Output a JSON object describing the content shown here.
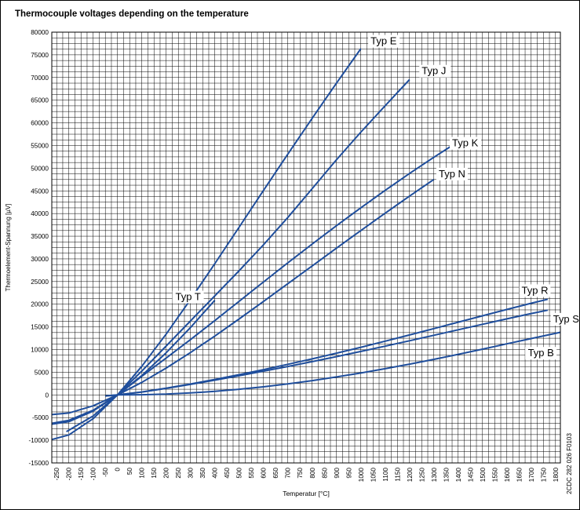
{
  "chart_data": {
    "type": "line",
    "title": "Thermocouple voltages depending on the temperature",
    "xlabel": "Temperatur [°C]",
    "ylabel": "Thermoelement-Spannung [µV]",
    "xlim": [
      -270,
      1820
    ],
    "ylim": [
      -15000,
      80000
    ],
    "x_ticks": [
      -250,
      -200,
      -150,
      -100,
      -50,
      0,
      50,
      100,
      150,
      200,
      250,
      300,
      350,
      400,
      450,
      500,
      550,
      600,
      650,
      700,
      750,
      800,
      850,
      900,
      950,
      1000,
      1050,
      1100,
      1150,
      1200,
      1250,
      1300,
      1350,
      1400,
      1450,
      1500,
      1550,
      1600,
      1650,
      1700,
      1750,
      1800
    ],
    "y_ticks": [
      -15000,
      -10000,
      -5000,
      0,
      5000,
      10000,
      15000,
      20000,
      25000,
      30000,
      35000,
      40000,
      45000,
      50000,
      55000,
      60000,
      65000,
      70000,
      75000,
      80000
    ],
    "grid": true,
    "series": [
      {
        "name": "Typ E",
        "color": "#1f4e9c",
        "points": [
          [
            -270,
            -9835
          ],
          [
            -200,
            -8825
          ],
          [
            -100,
            -5237
          ],
          [
            0,
            0
          ],
          [
            100,
            6319
          ],
          [
            200,
            13421
          ],
          [
            300,
            21036
          ],
          [
            400,
            28946
          ],
          [
            500,
            37005
          ],
          [
            600,
            45093
          ],
          [
            700,
            53112
          ],
          [
            800,
            61017
          ],
          [
            900,
            68787
          ],
          [
            1000,
            76373
          ]
        ]
      },
      {
        "name": "Typ J",
        "color": "#1f4e9c",
        "points": [
          [
            -210,
            -8095
          ],
          [
            -100,
            -4633
          ],
          [
            0,
            0
          ],
          [
            100,
            5269
          ],
          [
            200,
            10779
          ],
          [
            300,
            16327
          ],
          [
            400,
            21848
          ],
          [
            500,
            27393
          ],
          [
            600,
            33102
          ],
          [
            700,
            39132
          ],
          [
            800,
            45494
          ],
          [
            900,
            51877
          ],
          [
            1000,
            57953
          ],
          [
            1100,
            63792
          ],
          [
            1200,
            69553
          ]
        ]
      },
      {
        "name": "Typ K",
        "color": "#1f4e9c",
        "points": [
          [
            -270,
            -6458
          ],
          [
            -200,
            -5891
          ],
          [
            -100,
            -3554
          ],
          [
            0,
            0
          ],
          [
            100,
            4096
          ],
          [
            200,
            8138
          ],
          [
            300,
            12209
          ],
          [
            400,
            16397
          ],
          [
            500,
            20644
          ],
          [
            600,
            24905
          ],
          [
            700,
            29129
          ],
          [
            800,
            33275
          ],
          [
            900,
            37326
          ],
          [
            1000,
            41276
          ],
          [
            1100,
            45119
          ],
          [
            1200,
            48838
          ],
          [
            1300,
            52410
          ],
          [
            1372,
            54886
          ]
        ]
      },
      {
        "name": "Typ N",
        "color": "#1f4e9c",
        "points": [
          [
            -270,
            -4345
          ],
          [
            -200,
            -3990
          ],
          [
            -100,
            -2407
          ],
          [
            0,
            0
          ],
          [
            100,
            2774
          ],
          [
            200,
            5913
          ],
          [
            300,
            9341
          ],
          [
            400,
            12974
          ],
          [
            500,
            16748
          ],
          [
            600,
            20613
          ],
          [
            700,
            24527
          ],
          [
            800,
            28455
          ],
          [
            900,
            32371
          ],
          [
            1000,
            36256
          ],
          [
            1100,
            40087
          ],
          [
            1200,
            43846
          ],
          [
            1300,
            47513
          ]
        ]
      },
      {
        "name": "Typ T",
        "color": "#1f4e9c",
        "points": [
          [
            -270,
            -6258
          ],
          [
            -200,
            -5603
          ],
          [
            -100,
            -3379
          ],
          [
            0,
            0
          ],
          [
            100,
            4279
          ],
          [
            200,
            9288
          ],
          [
            300,
            14862
          ],
          [
            400,
            20872
          ]
        ]
      },
      {
        "name": "Typ R",
        "color": "#1f4e9c",
        "points": [
          [
            -50,
            -226
          ],
          [
            0,
            0
          ],
          [
            100,
            647
          ],
          [
            200,
            1469
          ],
          [
            300,
            2401
          ],
          [
            400,
            3408
          ],
          [
            500,
            4471
          ],
          [
            600,
            5583
          ],
          [
            700,
            6743
          ],
          [
            800,
            7950
          ],
          [
            900,
            9205
          ],
          [
            1000,
            10506
          ],
          [
            1100,
            11850
          ],
          [
            1200,
            13228
          ],
          [
            1300,
            14629
          ],
          [
            1400,
            16040
          ],
          [
            1500,
            17451
          ],
          [
            1600,
            18849
          ],
          [
            1700,
            20222
          ],
          [
            1768,
            21101
          ]
        ]
      },
      {
        "name": "Typ S",
        "color": "#1f4e9c",
        "points": [
          [
            -50,
            -236
          ],
          [
            0,
            0
          ],
          [
            100,
            646
          ],
          [
            200,
            1441
          ],
          [
            300,
            2323
          ],
          [
            400,
            3259
          ],
          [
            500,
            4233
          ],
          [
            600,
            5239
          ],
          [
            700,
            6275
          ],
          [
            800,
            7345
          ],
          [
            900,
            8449
          ],
          [
            1000,
            9587
          ],
          [
            1100,
            10757
          ],
          [
            1200,
            11951
          ],
          [
            1300,
            13159
          ],
          [
            1400,
            14373
          ],
          [
            1500,
            15582
          ],
          [
            1600,
            16777
          ],
          [
            1700,
            17947
          ],
          [
            1768,
            18693
          ]
        ]
      },
      {
        "name": "Typ B",
        "color": "#1f4e9c",
        "points": [
          [
            0,
            0
          ],
          [
            100,
            33
          ],
          [
            200,
            178
          ],
          [
            300,
            431
          ],
          [
            400,
            787
          ],
          [
            500,
            1242
          ],
          [
            600,
            1792
          ],
          [
            700,
            2431
          ],
          [
            800,
            3154
          ],
          [
            900,
            3957
          ],
          [
            1000,
            4834
          ],
          [
            1100,
            5780
          ],
          [
            1200,
            6786
          ],
          [
            1300,
            7848
          ],
          [
            1400,
            8956
          ],
          [
            1500,
            10099
          ],
          [
            1600,
            11263
          ],
          [
            1700,
            12433
          ],
          [
            1820,
            13820
          ]
        ]
      }
    ]
  },
  "watermark": "2CDC 282 026 F0103"
}
